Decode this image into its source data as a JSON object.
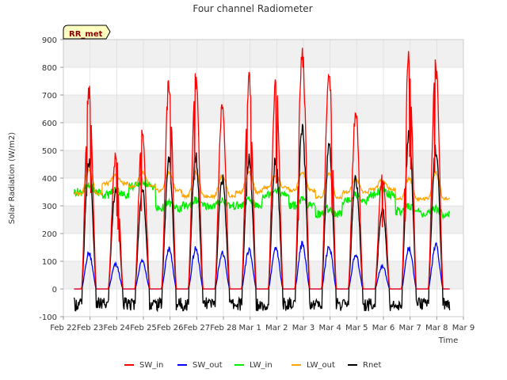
{
  "chart_data": {
    "type": "line",
    "title": "Four channel Radiometer",
    "xlabel": "Time",
    "ylabel": "Solar Radiation (W/m2)",
    "station_label": "RR_met",
    "ylim": [
      -100,
      900
    ],
    "yticks": [
      -100,
      0,
      100,
      200,
      300,
      400,
      500,
      600,
      700,
      800,
      900
    ],
    "xlim": [
      0,
      15
    ],
    "xticks": [
      {
        "x": 0,
        "label": "Feb 22"
      },
      {
        "x": 1,
        "label": "Feb 23"
      },
      {
        "x": 2,
        "label": "Feb 24"
      },
      {
        "x": 3,
        "label": "Feb 25"
      },
      {
        "x": 4,
        "label": "Feb 26"
      },
      {
        "x": 5,
        "label": "Feb 27"
      },
      {
        "x": 6,
        "label": "Feb 28"
      },
      {
        "x": 7,
        "label": "Mar 1"
      },
      {
        "x": 8,
        "label": "Mar 2"
      },
      {
        "x": 9,
        "label": "Mar 3"
      },
      {
        "x": 10,
        "label": "Mar 4"
      },
      {
        "x": 11,
        "label": "Mar 5"
      },
      {
        "x": 12,
        "label": "Mar 6"
      },
      {
        "x": 13,
        "label": "Mar 7"
      },
      {
        "x": 14,
        "label": "Mar 8"
      },
      {
        "x": 15,
        "label": "Mar 9"
      }
    ],
    "grid": true,
    "legend_position": "bottom",
    "series": [
      {
        "name": "SW_in",
        "color": "#ff0000"
      },
      {
        "name": "SW_out",
        "color": "#0000ff"
      },
      {
        "name": "LW_in",
        "color": "#00ee00"
      },
      {
        "name": "LW_out",
        "color": "#ffa500"
      },
      {
        "name": "Rnet",
        "color": "#000000"
      }
    ],
    "data_start_day": 0.4,
    "data_end_day": 14.5,
    "daily_peaks": {
      "SW_in": [
        750,
        510,
        580,
        780,
        790,
        700,
        790,
        780,
        890,
        830,
        660,
        430,
        880,
        850
      ],
      "SW_out": [
        140,
        95,
        110,
        155,
        155,
        140,
        150,
        155,
        175,
        165,
        130,
        90,
        160,
        170
      ],
      "Rnet": [
        480,
        380,
        380,
        490,
        500,
        420,
        500,
        500,
        600,
        530,
        420,
        300,
        580,
        530
      ],
      "LW_out_day": [
        430,
        410,
        420,
        420,
        420,
        410,
        420,
        410,
        420,
        415,
        395,
        395,
        400,
        420
      ],
      "LW_out_night": [
        345,
        380,
        370,
        355,
        335,
        335,
        350,
        365,
        355,
        330,
        350,
        360,
        325,
        325
      ],
      "LW_in": [
        350,
        340,
        370,
        290,
        300,
        300,
        300,
        340,
        300,
        270,
        320,
        340,
        280,
        270
      ]
    },
    "night_values": {
      "SW_in": 0,
      "SW_out": 0,
      "Rnet_min": -80,
      "Rnet_max": -30
    }
  }
}
